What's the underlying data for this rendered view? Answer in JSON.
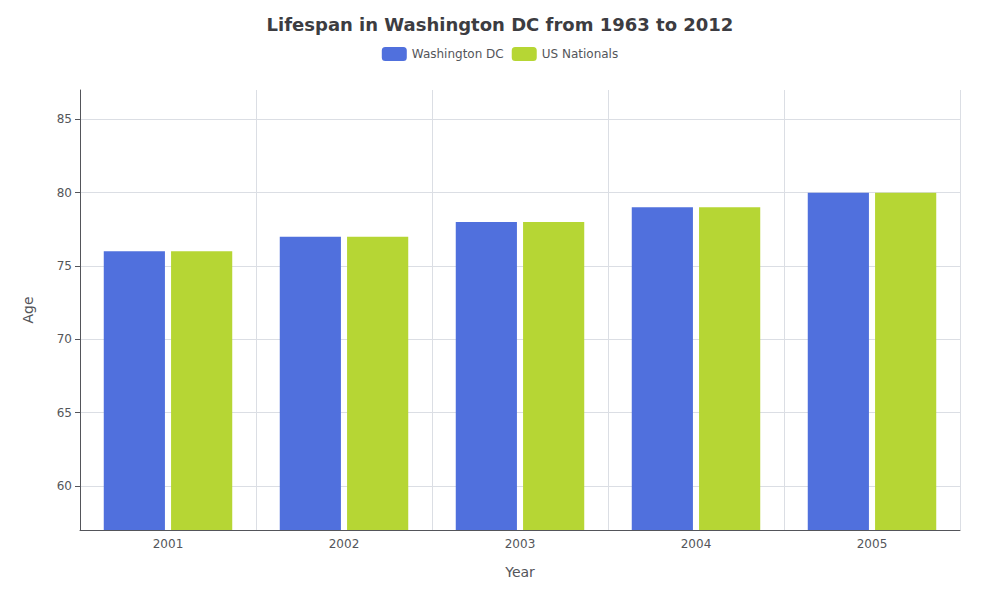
{
  "chart_data": {
    "type": "bar",
    "title": "Lifespan in Washington DC from 1963 to 2012",
    "x_label": "Year",
    "y_label": "Age",
    "categories": [
      "2001",
      "2002",
      "2003",
      "2004",
      "2005"
    ],
    "series": [
      {
        "name": "Washington DC",
        "values": [
          76,
          77,
          78,
          79,
          80
        ]
      },
      {
        "name": "US Nationals",
        "values": [
          76,
          77,
          78,
          79,
          80
        ]
      }
    ],
    "ylim": [
      57,
      87
    ],
    "yticks": [
      60,
      65,
      70,
      75,
      80,
      85
    ],
    "grid": true,
    "legend": "top"
  }
}
